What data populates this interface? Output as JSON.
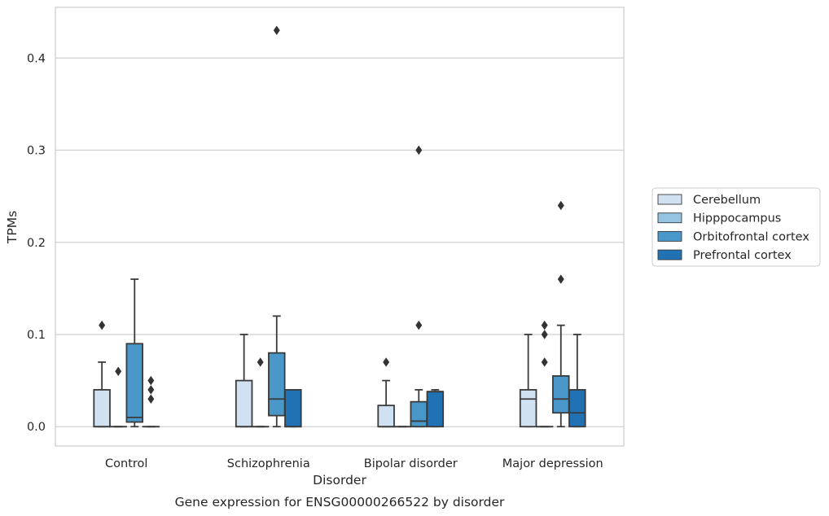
{
  "chart_data": {
    "type": "box",
    "xlabel": "Disorder",
    "ylabel": "TPMs",
    "caption": "Gene expression for ENSG00000266522 by disorder",
    "ylim": [
      -0.021,
      0.455
    ],
    "yticks": [
      "0.0",
      "0.1",
      "0.2",
      "0.3",
      "0.4"
    ],
    "grid": "horizontal",
    "legend_position": "right",
    "categories": [
      "Control",
      "Schizophrenia",
      "Bipolar disorder",
      "Major depression"
    ],
    "series": [
      {
        "name": "Cerebellum",
        "color": "#d0e1f2"
      },
      {
        "name": "Hipppocampus",
        "color": "#94c4df"
      },
      {
        "name": "Orbitofrontal cortex",
        "color": "#4a98c9"
      },
      {
        "name": "Prefrontal cortex",
        "color": "#2171b5"
      }
    ],
    "boxes": [
      {
        "category": "Control",
        "series": "Cerebellum",
        "whislo": 0,
        "q1": 0,
        "med": 0,
        "q3": 0.04,
        "whishi": 0.07,
        "fliers": [
          0.11
        ]
      },
      {
        "category": "Control",
        "series": "Hipppocampus",
        "whislo": 0,
        "q1": 0,
        "med": 0,
        "q3": 0,
        "whishi": 0,
        "fliers": [
          0.06
        ]
      },
      {
        "category": "Control",
        "series": "Orbitofrontal cortex",
        "whislo": 0,
        "q1": 0.005,
        "med": 0.01,
        "q3": 0.09,
        "whishi": 0.16,
        "fliers": []
      },
      {
        "category": "Control",
        "series": "Prefrontal cortex",
        "whislo": 0,
        "q1": 0,
        "med": 0,
        "q3": 0,
        "whishi": 0,
        "fliers": [
          0.03,
          0.04,
          0.05
        ]
      },
      {
        "category": "Schizophrenia",
        "series": "Cerebellum",
        "whislo": 0,
        "q1": 0,
        "med": 0,
        "q3": 0.05,
        "whishi": 0.1,
        "fliers": []
      },
      {
        "category": "Schizophrenia",
        "series": "Hipppocampus",
        "whislo": 0,
        "q1": 0,
        "med": 0,
        "q3": 0,
        "whishi": 0,
        "fliers": [
          0.07
        ]
      },
      {
        "category": "Schizophrenia",
        "series": "Orbitofrontal cortex",
        "whislo": 0,
        "q1": 0.012,
        "med": 0.03,
        "q3": 0.08,
        "whishi": 0.12,
        "fliers": [
          0.43
        ]
      },
      {
        "category": "Schizophrenia",
        "series": "Prefrontal cortex",
        "whislo": 0,
        "q1": 0,
        "med": 0,
        "q3": 0.04,
        "whishi": 0.04,
        "fliers": []
      },
      {
        "category": "Bipolar disorder",
        "series": "Cerebellum",
        "whislo": 0,
        "q1": 0,
        "med": 0,
        "q3": 0.023,
        "whishi": 0.05,
        "fliers": [
          0.07
        ]
      },
      {
        "category": "Bipolar disorder",
        "series": "Hipppocampus",
        "whislo": 0,
        "q1": 0,
        "med": 0,
        "q3": 0,
        "whishi": 0,
        "fliers": []
      },
      {
        "category": "Bipolar disorder",
        "series": "Orbitofrontal cortex",
        "whislo": 0,
        "q1": 0,
        "med": 0.006,
        "q3": 0.027,
        "whishi": 0.04,
        "fliers": [
          0.11,
          0.3
        ]
      },
      {
        "category": "Bipolar disorder",
        "series": "Prefrontal cortex",
        "whislo": 0,
        "q1": 0,
        "med": 0.038,
        "q3": 0.038,
        "whishi": 0.04,
        "fliers": []
      },
      {
        "category": "Major depression",
        "series": "Cerebellum",
        "whislo": 0,
        "q1": 0,
        "med": 0.03,
        "q3": 0.04,
        "whishi": 0.1,
        "fliers": []
      },
      {
        "category": "Major depression",
        "series": "Hipppocampus",
        "whislo": 0,
        "q1": 0,
        "med": 0,
        "q3": 0,
        "whishi": 0,
        "fliers": [
          0.07,
          0.1,
          0.11
        ]
      },
      {
        "category": "Major depression",
        "series": "Orbitofrontal cortex",
        "whislo": 0,
        "q1": 0.015,
        "med": 0.03,
        "q3": 0.055,
        "whishi": 0.11,
        "fliers": [
          0.16,
          0.24
        ]
      },
      {
        "category": "Major depression",
        "series": "Prefrontal cortex",
        "whislo": 0,
        "q1": 0,
        "med": 0.015,
        "q3": 0.04,
        "whishi": 0.1,
        "fliers": []
      }
    ]
  }
}
